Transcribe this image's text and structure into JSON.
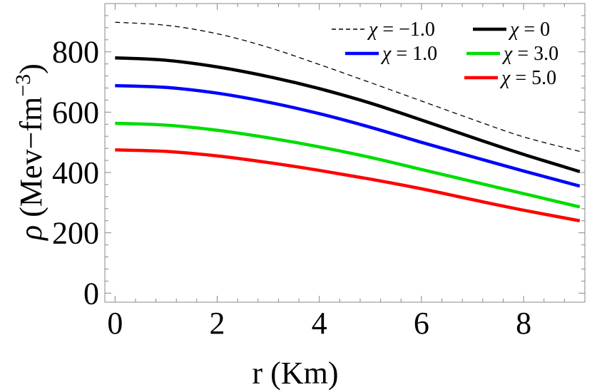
{
  "chart_data": {
    "type": "line",
    "title": "",
    "xlabel": "r (Km)",
    "ylabel": "ρ (Mev−fm−3)",
    "ylabel_parts": {
      "symbol": "ρ",
      "text": " (Mev−fm",
      "superscript": "−3",
      "close": ")"
    },
    "xlim": [
      -0.2,
      9.2
    ],
    "ylim": [
      -30,
      960
    ],
    "xticks": [
      0,
      2,
      4,
      6,
      8
    ],
    "xtick_labels": [
      "0",
      "2",
      "4",
      "6",
      "8"
    ],
    "yticks": [
      0,
      200,
      400,
      600,
      800
    ],
    "ytick_labels": [
      "0",
      "200",
      "400",
      "600",
      "800"
    ],
    "grid": false,
    "legend_position": "top-right",
    "series": [
      {
        "name": "χ = −1.0",
        "legend_symbol": "χ",
        "legend_rest": " = −1.0",
        "color": "#000000",
        "style": "dashed",
        "x": [
          0,
          1,
          2,
          3,
          4,
          5,
          6,
          7,
          8,
          9.1
        ],
        "y": [
          898,
          888,
          860,
          815,
          758,
          698,
          637,
          576,
          518,
          470
        ]
      },
      {
        "name": "χ = 0",
        "legend_symbol": "χ",
        "legend_rest": " = 0",
        "color": "#000000",
        "style": "solid",
        "x": [
          0,
          1,
          2,
          3,
          4,
          5,
          6,
          7,
          8,
          9.1
        ],
        "y": [
          780,
          772,
          750,
          718,
          678,
          630,
          574,
          516,
          460,
          403
        ]
      },
      {
        "name": "χ = 1.0",
        "legend_symbol": "χ",
        "legend_rest": " = 1.0",
        "color": "#0000ff",
        "style": "solid",
        "x": [
          0,
          1,
          2,
          3,
          4,
          5,
          6,
          7,
          8,
          9.1
        ],
        "y": [
          688,
          682,
          663,
          633,
          595,
          550,
          500,
          452,
          405,
          355
        ]
      },
      {
        "name": "χ = 3.0",
        "legend_symbol": "χ",
        "legend_rest": " = 3.0",
        "color": "#00dd00",
        "style": "solid",
        "x": [
          0,
          1,
          2,
          3,
          4,
          5,
          6,
          7,
          8,
          9.1
        ],
        "y": [
          563,
          557,
          540,
          515,
          485,
          450,
          410,
          370,
          330,
          286
        ]
      },
      {
        "name": "χ = 5.0",
        "legend_symbol": "χ",
        "legend_rest": " = 5.0",
        "color": "#ff0000",
        "style": "solid",
        "x": [
          0,
          1,
          2,
          3,
          4,
          5,
          6,
          7,
          8,
          9.1
        ],
        "y": [
          475,
          470,
          455,
          433,
          407,
          378,
          346,
          310,
          275,
          240
        ]
      }
    ]
  }
}
